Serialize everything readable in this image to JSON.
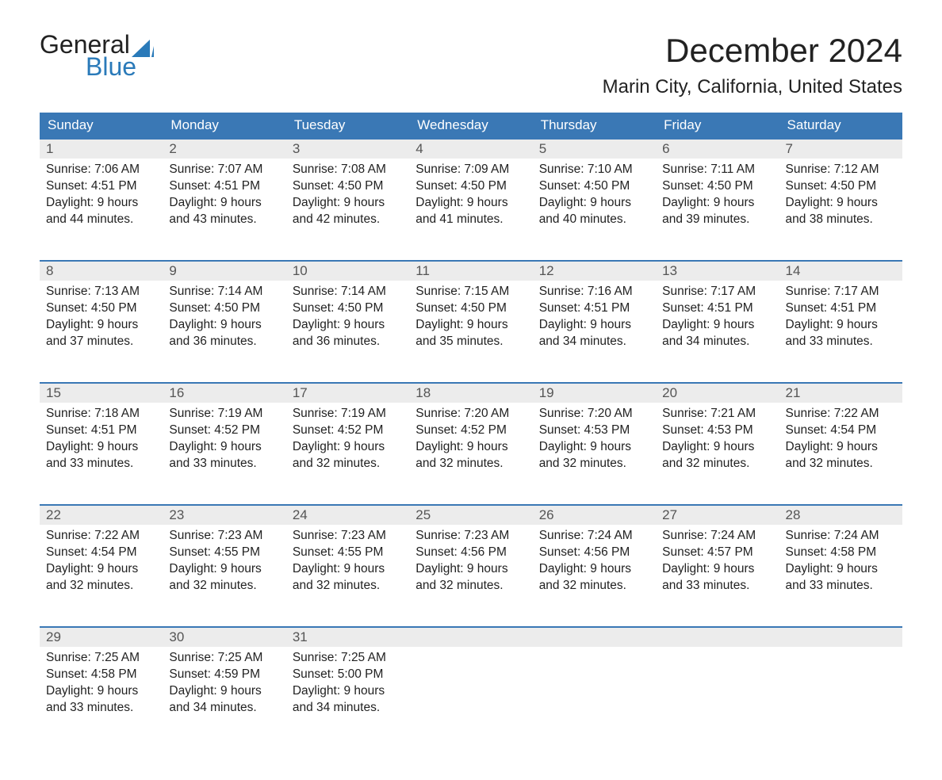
{
  "logo": {
    "text_top": "General",
    "text_bottom": "Blue"
  },
  "header": {
    "month_title": "December 2024",
    "location": "Marin City, California, United States"
  },
  "colors": {
    "header_bg": "#3a78b5",
    "header_text": "#ffffff",
    "daynum_bg": "#ececec",
    "rule": "#3a78b5",
    "logo_blue": "#2a7ab9",
    "body_text": "#222222"
  },
  "weekdays": [
    "Sunday",
    "Monday",
    "Tuesday",
    "Wednesday",
    "Thursday",
    "Friday",
    "Saturday"
  ],
  "weeks": [
    [
      {
        "n": "1",
        "sunrise": "Sunrise: 7:06 AM",
        "sunset": "Sunset: 4:51 PM",
        "d1": "Daylight: 9 hours",
        "d2": "and 44 minutes."
      },
      {
        "n": "2",
        "sunrise": "Sunrise: 7:07 AM",
        "sunset": "Sunset: 4:51 PM",
        "d1": "Daylight: 9 hours",
        "d2": "and 43 minutes."
      },
      {
        "n": "3",
        "sunrise": "Sunrise: 7:08 AM",
        "sunset": "Sunset: 4:50 PM",
        "d1": "Daylight: 9 hours",
        "d2": "and 42 minutes."
      },
      {
        "n": "4",
        "sunrise": "Sunrise: 7:09 AM",
        "sunset": "Sunset: 4:50 PM",
        "d1": "Daylight: 9 hours",
        "d2": "and 41 minutes."
      },
      {
        "n": "5",
        "sunrise": "Sunrise: 7:10 AM",
        "sunset": "Sunset: 4:50 PM",
        "d1": "Daylight: 9 hours",
        "d2": "and 40 minutes."
      },
      {
        "n": "6",
        "sunrise": "Sunrise: 7:11 AM",
        "sunset": "Sunset: 4:50 PM",
        "d1": "Daylight: 9 hours",
        "d2": "and 39 minutes."
      },
      {
        "n": "7",
        "sunrise": "Sunrise: 7:12 AM",
        "sunset": "Sunset: 4:50 PM",
        "d1": "Daylight: 9 hours",
        "d2": "and 38 minutes."
      }
    ],
    [
      {
        "n": "8",
        "sunrise": "Sunrise: 7:13 AM",
        "sunset": "Sunset: 4:50 PM",
        "d1": "Daylight: 9 hours",
        "d2": "and 37 minutes."
      },
      {
        "n": "9",
        "sunrise": "Sunrise: 7:14 AM",
        "sunset": "Sunset: 4:50 PM",
        "d1": "Daylight: 9 hours",
        "d2": "and 36 minutes."
      },
      {
        "n": "10",
        "sunrise": "Sunrise: 7:14 AM",
        "sunset": "Sunset: 4:50 PM",
        "d1": "Daylight: 9 hours",
        "d2": "and 36 minutes."
      },
      {
        "n": "11",
        "sunrise": "Sunrise: 7:15 AM",
        "sunset": "Sunset: 4:50 PM",
        "d1": "Daylight: 9 hours",
        "d2": "and 35 minutes."
      },
      {
        "n": "12",
        "sunrise": "Sunrise: 7:16 AM",
        "sunset": "Sunset: 4:51 PM",
        "d1": "Daylight: 9 hours",
        "d2": "and 34 minutes."
      },
      {
        "n": "13",
        "sunrise": "Sunrise: 7:17 AM",
        "sunset": "Sunset: 4:51 PM",
        "d1": "Daylight: 9 hours",
        "d2": "and 34 minutes."
      },
      {
        "n": "14",
        "sunrise": "Sunrise: 7:17 AM",
        "sunset": "Sunset: 4:51 PM",
        "d1": "Daylight: 9 hours",
        "d2": "and 33 minutes."
      }
    ],
    [
      {
        "n": "15",
        "sunrise": "Sunrise: 7:18 AM",
        "sunset": "Sunset: 4:51 PM",
        "d1": "Daylight: 9 hours",
        "d2": "and 33 minutes."
      },
      {
        "n": "16",
        "sunrise": "Sunrise: 7:19 AM",
        "sunset": "Sunset: 4:52 PM",
        "d1": "Daylight: 9 hours",
        "d2": "and 33 minutes."
      },
      {
        "n": "17",
        "sunrise": "Sunrise: 7:19 AM",
        "sunset": "Sunset: 4:52 PM",
        "d1": "Daylight: 9 hours",
        "d2": "and 32 minutes."
      },
      {
        "n": "18",
        "sunrise": "Sunrise: 7:20 AM",
        "sunset": "Sunset: 4:52 PM",
        "d1": "Daylight: 9 hours",
        "d2": "and 32 minutes."
      },
      {
        "n": "19",
        "sunrise": "Sunrise: 7:20 AM",
        "sunset": "Sunset: 4:53 PM",
        "d1": "Daylight: 9 hours",
        "d2": "and 32 minutes."
      },
      {
        "n": "20",
        "sunrise": "Sunrise: 7:21 AM",
        "sunset": "Sunset: 4:53 PM",
        "d1": "Daylight: 9 hours",
        "d2": "and 32 minutes."
      },
      {
        "n": "21",
        "sunrise": "Sunrise: 7:22 AM",
        "sunset": "Sunset: 4:54 PM",
        "d1": "Daylight: 9 hours",
        "d2": "and 32 minutes."
      }
    ],
    [
      {
        "n": "22",
        "sunrise": "Sunrise: 7:22 AM",
        "sunset": "Sunset: 4:54 PM",
        "d1": "Daylight: 9 hours",
        "d2": "and 32 minutes."
      },
      {
        "n": "23",
        "sunrise": "Sunrise: 7:23 AM",
        "sunset": "Sunset: 4:55 PM",
        "d1": "Daylight: 9 hours",
        "d2": "and 32 minutes."
      },
      {
        "n": "24",
        "sunrise": "Sunrise: 7:23 AM",
        "sunset": "Sunset: 4:55 PM",
        "d1": "Daylight: 9 hours",
        "d2": "and 32 minutes."
      },
      {
        "n": "25",
        "sunrise": "Sunrise: 7:23 AM",
        "sunset": "Sunset: 4:56 PM",
        "d1": "Daylight: 9 hours",
        "d2": "and 32 minutes."
      },
      {
        "n": "26",
        "sunrise": "Sunrise: 7:24 AM",
        "sunset": "Sunset: 4:56 PM",
        "d1": "Daylight: 9 hours",
        "d2": "and 32 minutes."
      },
      {
        "n": "27",
        "sunrise": "Sunrise: 7:24 AM",
        "sunset": "Sunset: 4:57 PM",
        "d1": "Daylight: 9 hours",
        "d2": "and 33 minutes."
      },
      {
        "n": "28",
        "sunrise": "Sunrise: 7:24 AM",
        "sunset": "Sunset: 4:58 PM",
        "d1": "Daylight: 9 hours",
        "d2": "and 33 minutes."
      }
    ],
    [
      {
        "n": "29",
        "sunrise": "Sunrise: 7:25 AM",
        "sunset": "Sunset: 4:58 PM",
        "d1": "Daylight: 9 hours",
        "d2": "and 33 minutes."
      },
      {
        "n": "30",
        "sunrise": "Sunrise: 7:25 AM",
        "sunset": "Sunset: 4:59 PM",
        "d1": "Daylight: 9 hours",
        "d2": "and 34 minutes."
      },
      {
        "n": "31",
        "sunrise": "Sunrise: 7:25 AM",
        "sunset": "Sunset: 5:00 PM",
        "d1": "Daylight: 9 hours",
        "d2": "and 34 minutes."
      },
      null,
      null,
      null,
      null
    ]
  ]
}
